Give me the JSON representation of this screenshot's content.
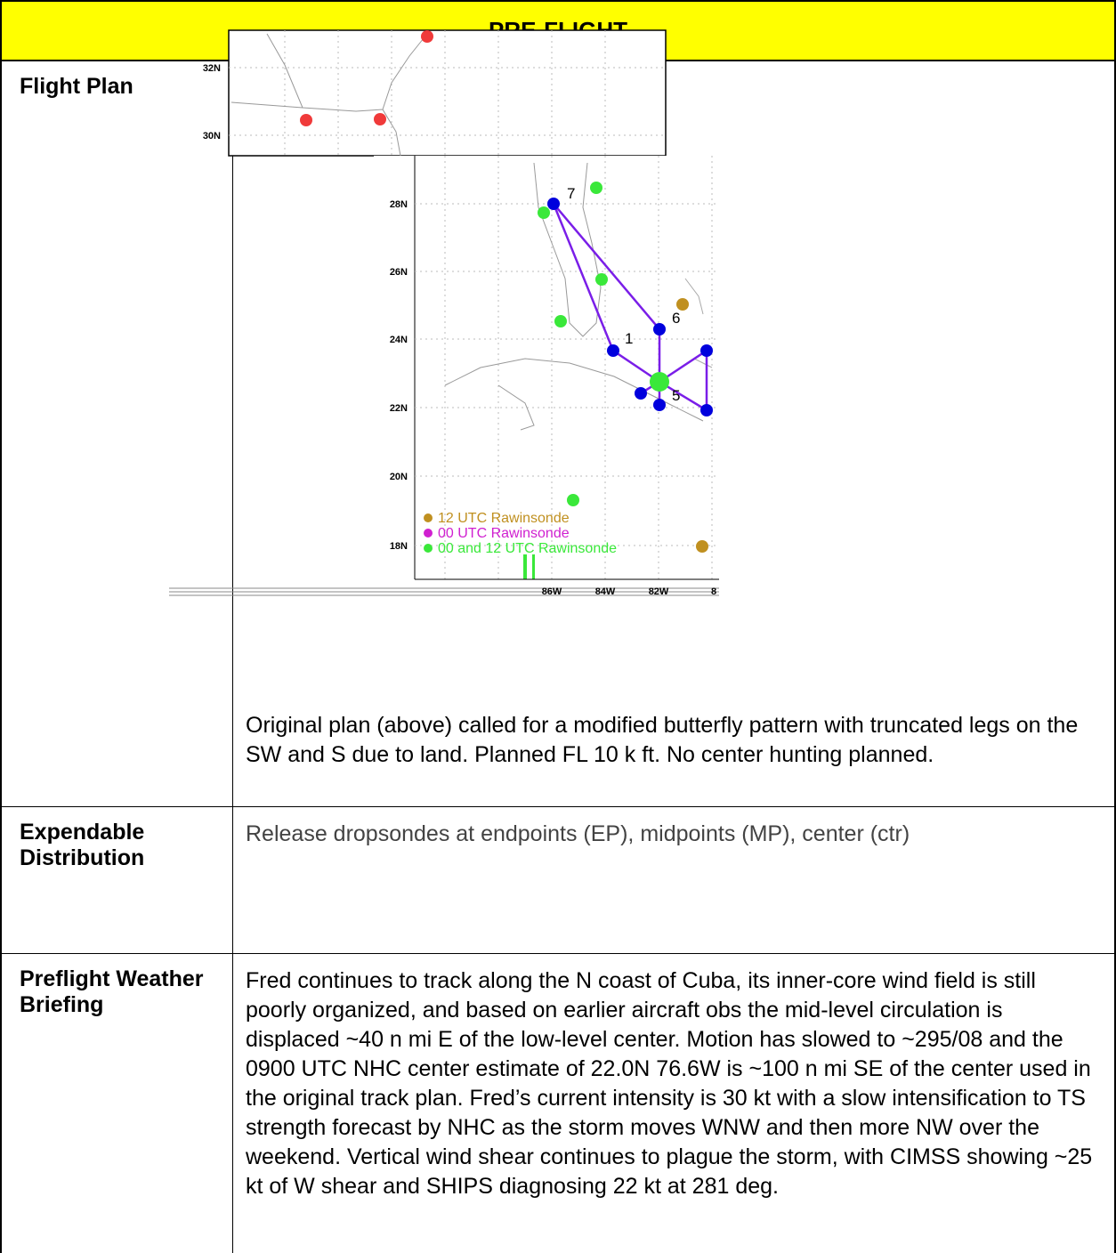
{
  "header": {
    "title": "PRE-FLIGHT"
  },
  "rows": [
    {
      "label": "Flight Plan",
      "map": {
        "top_lat_labels": [
          "32N",
          "30N"
        ],
        "lat_labels": [
          "28N",
          "26N",
          "24N",
          "22N",
          "20N",
          "18N"
        ],
        "lon_labels": [
          "86W",
          "84W",
          "82W",
          "8"
        ],
        "waypoints": [
          "7",
          "6",
          "1",
          "5"
        ],
        "legend": [
          "12 UTC Rawinsonde",
          "00 UTC Rawinsonde",
          "00 and 12 UTC Rawinsonde"
        ]
      },
      "text": "Original plan (above) called for a modified butterfly pattern with truncated legs on the SW and S due to land. Planned FL 10 k ft. No center hunting planned."
    },
    {
      "label": "Expendable Distribution",
      "text": "Release dropsondes at endpoints (EP), midpoints (MP), center (ctr)"
    },
    {
      "label": "Preflight Weather Briefing",
      "text": "Fred continues to track along the N coast of Cuba, its inner-core wind field is still poorly organized, and based on earlier aircraft obs the mid-level circulation is displaced ~40 n mi E of the low-level center. Motion has slowed to ~295/08 and the 0900 UTC NHC center estimate of 22.0N 76.6W is ~100 n mi SE of the center used in the original track plan. Fred’s current intensity is 30 kt with a slow intensification to TS strength forecast by NHC as the storm moves WNW and then more NW over the weekend. Vertical wind shear continues to plague the storm, with CIMSS showing ~25 kt of W shear and SHIPS diagnosing 22 kt at 281 deg."
    }
  ]
}
